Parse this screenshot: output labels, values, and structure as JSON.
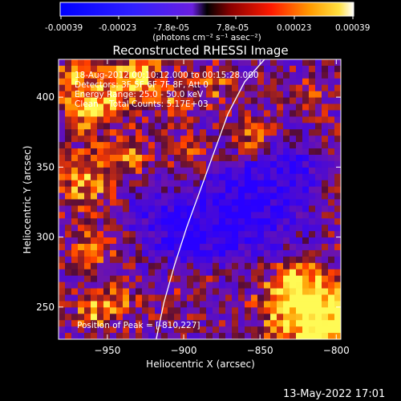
{
  "colorbar": {
    "tick_labels": [
      "-0.00039",
      "-0.00023",
      "-7.8e-05",
      "7.8e-05",
      "0.00023",
      "0.00039"
    ],
    "unit_label": "(photons cm⁻² s⁻¹ asec⁻²)"
  },
  "chart_data": {
    "type": "heatmap",
    "title": "Reconstructed RHESSI Image",
    "xlabel": "Heliocentric X (arcsec)",
    "ylabel": "Heliocentric Y (arcsec)",
    "xlim": [
      -982,
      -797
    ],
    "ylim": [
      227,
      427
    ],
    "x_ticks": [
      -950,
      -900,
      -850,
      -800
    ],
    "y_ticks": [
      250,
      300,
      350,
      400
    ],
    "x_tick_labels": [
      "−950",
      "−900",
      "−850",
      "−800"
    ],
    "y_tick_labels": [
      "250",
      "300",
      "350",
      "400"
    ],
    "value_range": [
      -0.00039,
      0.00039
    ],
    "peak_position": [
      -810,
      227
    ],
    "grid": false,
    "limb_curve": {
      "name": "solar limb",
      "x": [
        -918,
        -913,
        -906,
        -898,
        -889,
        -880,
        -871,
        -860,
        -847
      ],
      "y": [
        227,
        253,
        280,
        307,
        334,
        361,
        388,
        411,
        427
      ]
    },
    "annotations": [
      "18-Aug-2012 00:10:12.000 to 00:15:28.000",
      "Detectors: 3F 5F 6F 7F 8F, Att 0",
      "Energy Range: 25.0 - 50.0 keV",
      "Clean    Total Counts: 5.17E+03"
    ],
    "peak_text": "Position of Peak = [-810,227]"
  },
  "footer": {
    "timestamp": "13-May-2022 17:01"
  }
}
